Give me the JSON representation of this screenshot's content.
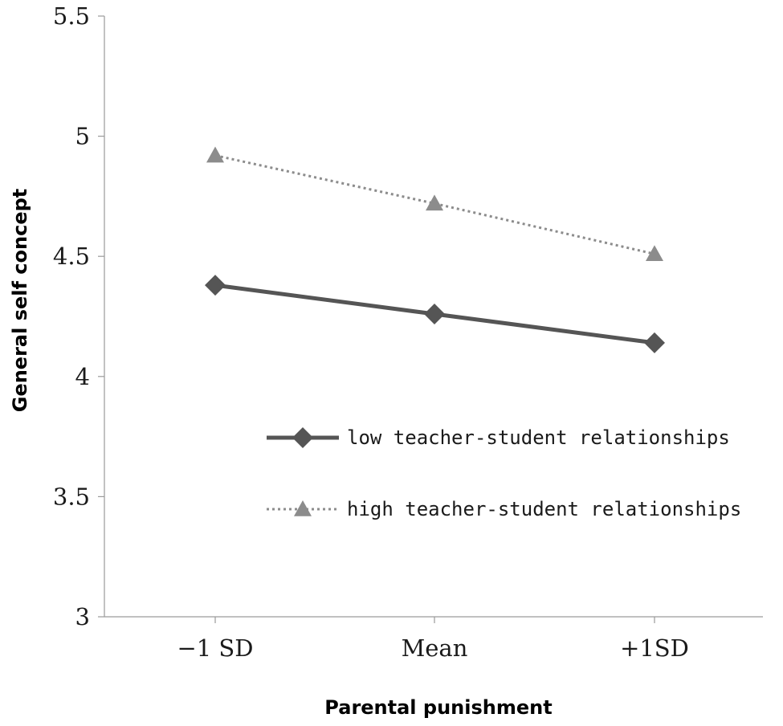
{
  "chart_data": {
    "type": "line",
    "title": "",
    "xlabel": "Parental punishment",
    "ylabel": "General self concept",
    "categories": [
      "−1 SD",
      "Mean",
      "+1SD"
    ],
    "ylim": [
      3,
      5.5
    ],
    "yticks": [
      {
        "value": 3,
        "label": "3"
      },
      {
        "value": 3.5,
        "label": "3.5"
      },
      {
        "value": 4,
        "label": "4"
      },
      {
        "value": 4.5,
        "label": "4.5"
      },
      {
        "value": 5,
        "label": "5"
      },
      {
        "value": 5.5,
        "label": "5.5"
      }
    ],
    "grid": false,
    "legend_position": "right-middle",
    "series": [
      {
        "name": "low teacher-student relationships",
        "values": [
          4.38,
          4.26,
          4.14
        ],
        "color": "#555555",
        "line_style": "solid",
        "marker": "diamond"
      },
      {
        "name": "high teacher-student relationships",
        "values": [
          4.92,
          4.72,
          4.51
        ],
        "color": "#8c8c8c",
        "line_style": "dotted",
        "marker": "triangle"
      }
    ]
  }
}
